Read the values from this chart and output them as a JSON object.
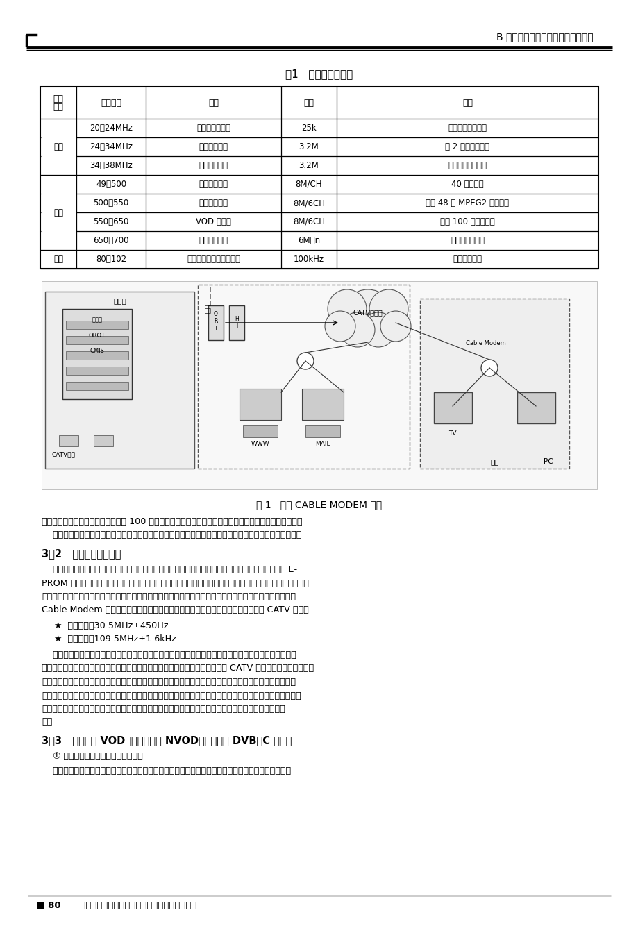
{
  "page_header_right": "B 有线电视扩展业务与增值业务专题",
  "table_title": "表1   频率资源与业务",
  "table_col_headers": [
    "信号\n方向",
    "信号频率",
    "类型",
    "带宽",
    "备注"
  ],
  "table_rows": [
    [
      "上行",
      "20～24MHz",
      "安防、三表抄录",
      "25k",
      "具体频点可以设置"
    ],
    [
      "上行",
      "24～34MHz",
      "上行数据信号",
      "3.2M",
      "以 2 兆为单位设置"
    ],
    [
      "上行",
      "34～38MHz",
      "上行点播信号",
      "3.2M",
      "设置上行点播信息"
    ],
    [
      "下行",
      "49～500",
      "模拟电视信号",
      "8M/CH",
      "40 多套节目"
    ],
    [
      "下行",
      "500～550",
      "数字压缩电视",
      "8M/6CH",
      "可传 48 套 MPEG2 电视节目"
    ],
    [
      "下行",
      "550～650",
      "VOD 视频流",
      "8M/6CH",
      "支持 100 并发视频流"
    ],
    [
      "下行",
      "650～700",
      "下行数据信号",
      "6M＊n",
      "视实际需要添加"
    ],
    [
      "备注",
      "80～102",
      "安防、三表抄录控制信号",
      "100kHz",
      "根据实际设置"
    ]
  ],
  "figure_caption": "图 1   社区 CABLE MODEM 系统",
  "section_32_title": "3．2   三表自动抄录功能",
  "section_32_body": [
    "    在智能小区中采用电子水表、电表、煤气表，通过专用电缆数据终端对三表进行读数，将读数存储在 E-",
    "PROM 中，管理中心的计算机通过有线电视网络读取住户家中的三表，实现了远程自动抄表。避免了一些不法",
    "分子冒充抄表员到用户家进行抢劫的可能，保障了用户的安全。三表自动抄录系统由用户数字终端设备、前端",
    "Cable Modem 和管理软件三个组成部分。不用重新布线，只需利用已经布好的双向 CATV 网络。"
  ],
  "bullet1": "★  上行频点：30.5MHz±450Hz",
  "bullet2": "★  下行频点：109.5MHz±1.6kHz",
  "section_32_body2": [
    "    利用现有的有线电视网络资源，实现了自动读表、家庭防盗报警和紧急医疗求助功能。系统可以自动读取",
    "电表、煤气表、水表和纯水表等读数并计算出各住户应该交纳的费用，同样通过 CATV 连接门磁、红外、烟感、",
    "玻璃破碎以及煤气泄漏等探测器，实现门窗保护、探测未知人员、火警感知和煤气泄漏等报警功能。在管理中",
    "心可以控制用户家电的开关，可以控制电源、煤气、水和有线电视的通断（需要相应的执行部件支持）。安装在",
    "家中的数字采集终端和显示控制器等设备，住户不需要看表，操作键盘即可在液晶显示器显示四种表的读",
    "数。"
  ],
  "section_33_title": "3．3   视频点播 VOD、准视频点播 NVOD、网络电视 DVB－C 的实现",
  "section_33_sub": "    ① 数字视音频信号在模拟网络的传输",
  "section_33_body": [
    "    现有有线电视传输的是模拟信号，数据信号必须通过调制后转换成模拟信号才能够在网络中传送。采用"
  ],
  "intro_line1": "务功能，并且接入速度是拨号上网的 100 倍，收费可以节省许多（只需交信息流量包月费用不交电话费）。",
  "intro_line2": "    小区可以联系有关的连锁店、超市在小区展开电子商务、网上购物等行为，进一步提供小区的智能化水平。",
  "footer_left": "■ 80      （第八届）全国有线电视综合信息网学术研讨会",
  "background_color": "#ffffff"
}
